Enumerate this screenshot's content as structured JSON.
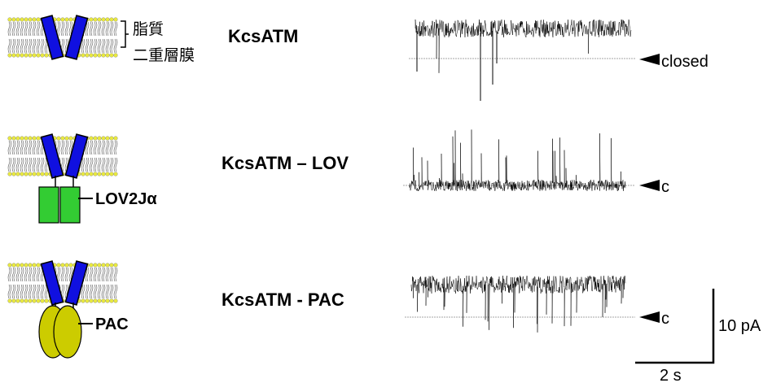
{
  "membrane_label": [
    "脂質",
    "二重層膜"
  ],
  "rows": [
    {
      "name": "KcsATM",
      "state": "closed"
    },
    {
      "name": "KcsATM – LOV",
      "domain": "LOV2Jα",
      "state": "c"
    },
    {
      "name": "KcsATM - PAC",
      "domain": "PAC",
      "state": "c"
    }
  ],
  "scale_bar": {
    "current": "10 pA",
    "time": "2 s"
  }
}
